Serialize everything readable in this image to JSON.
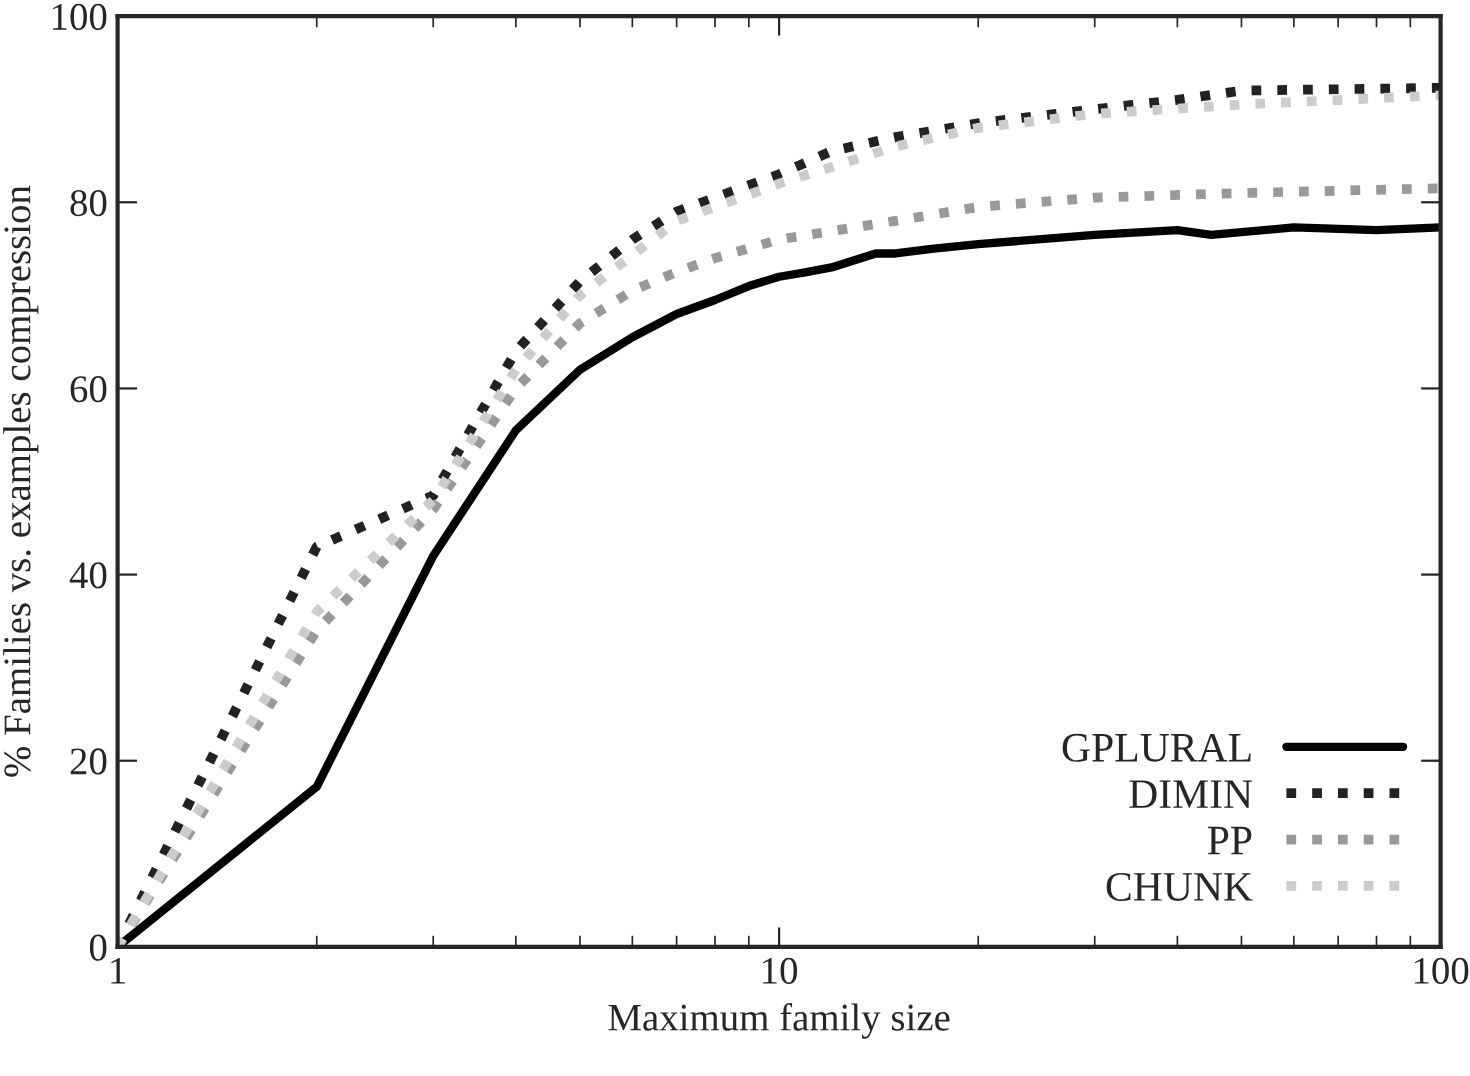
{
  "chart_data": {
    "type": "line",
    "xlabel": "Maximum family size",
    "ylabel": "% Families vs. examples compression",
    "log": "x",
    "xlim": [
      1,
      100
    ],
    "xticks": [
      1,
      10,
      100
    ],
    "ylim": [
      0,
      100
    ],
    "yticks": [
      0,
      20,
      40,
      60,
      80,
      100
    ],
    "grid": false,
    "legend": "bottom right",
    "marker": "none",
    "series": [
      {
        "name": "GPLURAL",
        "color": "#000000",
        "line_style": "solid",
        "x": [
          1,
          2,
          3,
          4,
          5,
          6,
          7,
          8,
          9,
          10,
          11,
          12,
          14,
          15,
          17,
          20,
          30,
          40,
          45,
          60,
          80,
          100
        ],
        "values": [
          0,
          17.2,
          42,
          55.5,
          62,
          65.5,
          68,
          69.5,
          71,
          72,
          72.5,
          73,
          74.5,
          74.5,
          75,
          75.5,
          76.5,
          77,
          76.5,
          77.3,
          77,
          77.3
        ]
      },
      {
        "name": "DIMIN",
        "color": "#222222",
        "line_style": "dotted",
        "x": [
          1,
          2,
          3,
          4,
          5,
          6,
          7,
          8,
          10,
          12,
          15,
          20,
          30,
          40,
          50,
          100
        ],
        "values": [
          0,
          43,
          48.5,
          64,
          71.5,
          76,
          79,
          80.5,
          83,
          85.5,
          87,
          88.5,
          90,
          91,
          92,
          92.3
        ]
      },
      {
        "name": "PP",
        "color": "#999999",
        "line_style": "dotted",
        "x": [
          1,
          2,
          3,
          4,
          5,
          6,
          7,
          8,
          10,
          15,
          20,
          30,
          50,
          100
        ],
        "values": [
          0,
          34,
          47,
          60,
          67,
          70.5,
          72.5,
          74,
          76,
          78,
          79.5,
          80.5,
          81,
          81.5
        ]
      },
      {
        "name": "CHUNK",
        "color": "#cccccc",
        "line_style": "dotted",
        "x": [
          1,
          2,
          3,
          4,
          5,
          7,
          10,
          15,
          20,
          30,
          50,
          100
        ],
        "values": [
          0,
          36,
          48,
          62,
          70,
          78,
          82,
          86,
          88,
          89.5,
          90.5,
          91.5
        ]
      }
    ]
  }
}
